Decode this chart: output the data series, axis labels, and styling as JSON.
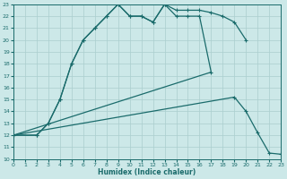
{
  "xlabel": "Humidex (Indice chaleur)",
  "xlim": [
    0,
    23
  ],
  "ylim": [
    10,
    23
  ],
  "bg_color": "#cce8e8",
  "grid_color": "#aacece",
  "line_color": "#1a6b6b",
  "xticks": [
    0,
    1,
    2,
    3,
    4,
    5,
    6,
    7,
    8,
    9,
    10,
    11,
    12,
    13,
    14,
    15,
    16,
    17,
    18,
    19,
    20,
    21,
    22,
    23
  ],
  "yticks": [
    10,
    11,
    12,
    13,
    14,
    15,
    16,
    17,
    18,
    19,
    20,
    21,
    22,
    23
  ],
  "lines": [
    {
      "x": [
        0,
        2,
        3,
        4,
        5,
        6,
        7,
        8,
        9,
        10,
        11,
        12,
        13,
        14,
        15,
        16,
        17,
        18,
        19,
        20
      ],
      "y": [
        12,
        12,
        13,
        15,
        18,
        20,
        21,
        22,
        23,
        22,
        22,
        21.5,
        23,
        22.5,
        22.5,
        22.5,
        22.3,
        22,
        21.5,
        20
      ],
      "style": "-",
      "marker": "+"
    },
    {
      "x": [
        0,
        2,
        3,
        4,
        5,
        6,
        7,
        8,
        9,
        10,
        11,
        12,
        13,
        14,
        15,
        16,
        17
      ],
      "y": [
        12,
        12,
        13,
        15,
        18,
        20,
        21,
        22,
        23,
        22,
        22,
        21.5,
        23,
        22,
        22,
        22,
        17.3
      ],
      "style": "-",
      "marker": "+"
    },
    {
      "x": [
        0,
        17
      ],
      "y": [
        12,
        17.3
      ],
      "style": "-",
      "marker": ""
    },
    {
      "x": [
        0,
        19,
        20,
        21,
        22,
        23
      ],
      "y": [
        12,
        15.2,
        14.0,
        12.2,
        10.5,
        10.4
      ],
      "style": "-",
      "marker": "+"
    }
  ]
}
